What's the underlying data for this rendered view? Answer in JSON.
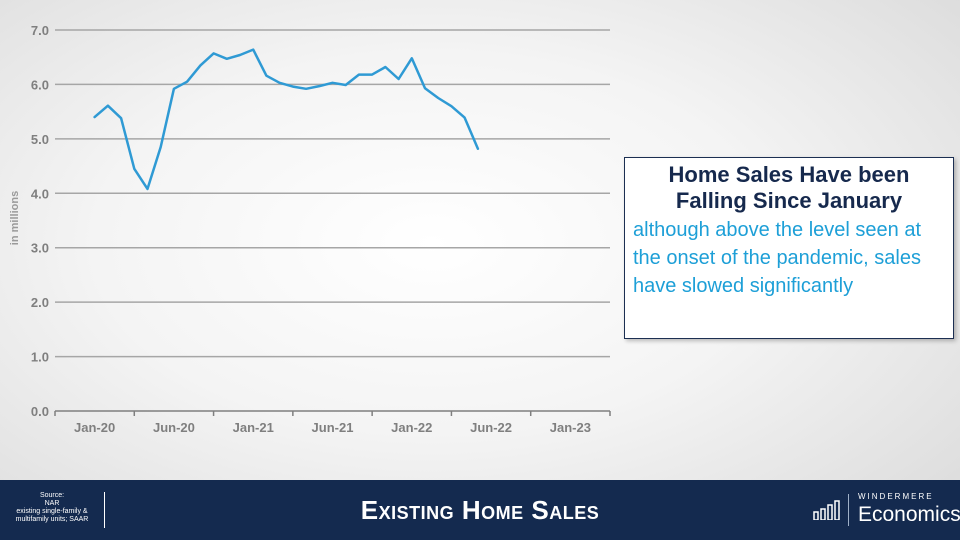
{
  "chart_data": {
    "type": "line",
    "ylabel": "in millions",
    "ylim": [
      0,
      7
    ],
    "yticks": [
      "0.0",
      "1.0",
      "2.0",
      "3.0",
      "4.0",
      "5.0",
      "6.0",
      "7.0"
    ],
    "x_tick_labels": [
      "Jan-20",
      "Jun-20",
      "Jan-21",
      "Jun-21",
      "Jan-22",
      "Jun-22",
      "Jan-23"
    ],
    "x_start": "2019-10",
    "x_end": "2023-04",
    "grid": true,
    "series": [
      {
        "color": "#2f9ad4",
        "x": [
          "2020-01",
          "2020-02",
          "2020-03",
          "2020-04",
          "2020-05",
          "2020-06",
          "2020-07",
          "2020-08",
          "2020-09",
          "2020-10",
          "2020-11",
          "2020-12",
          "2021-01",
          "2021-02",
          "2021-03",
          "2021-04",
          "2021-05",
          "2021-06",
          "2021-07",
          "2021-08",
          "2021-09",
          "2021-10",
          "2021-11",
          "2021-12",
          "2022-01",
          "2022-02",
          "2022-03",
          "2022-04",
          "2022-05",
          "2022-06"
        ],
        "values": [
          5.4,
          5.61,
          5.38,
          4.45,
          4.08,
          4.85,
          5.92,
          6.05,
          6.35,
          6.57,
          6.47,
          6.54,
          6.64,
          6.16,
          6.03,
          5.96,
          5.92,
          5.97,
          6.03,
          5.99,
          6.18,
          6.18,
          6.32,
          6.1,
          6.48,
          5.93,
          5.75,
          5.6,
          5.39,
          4.82
        ]
      }
    ]
  },
  "callout": {
    "title": "Home Sales Have been Falling Since January",
    "body": "although above the level seen at the onset of the pandemic, sales have slowed significantly"
  },
  "footer": {
    "source_label": "Source:",
    "source_name": "NAR",
    "source_detail": "existing single-family & multifamily units; SAAR",
    "title": "Existing Home Sales",
    "logo_small": "WINDERMERE",
    "logo_big": "Economics",
    "background": "#142a4f"
  }
}
